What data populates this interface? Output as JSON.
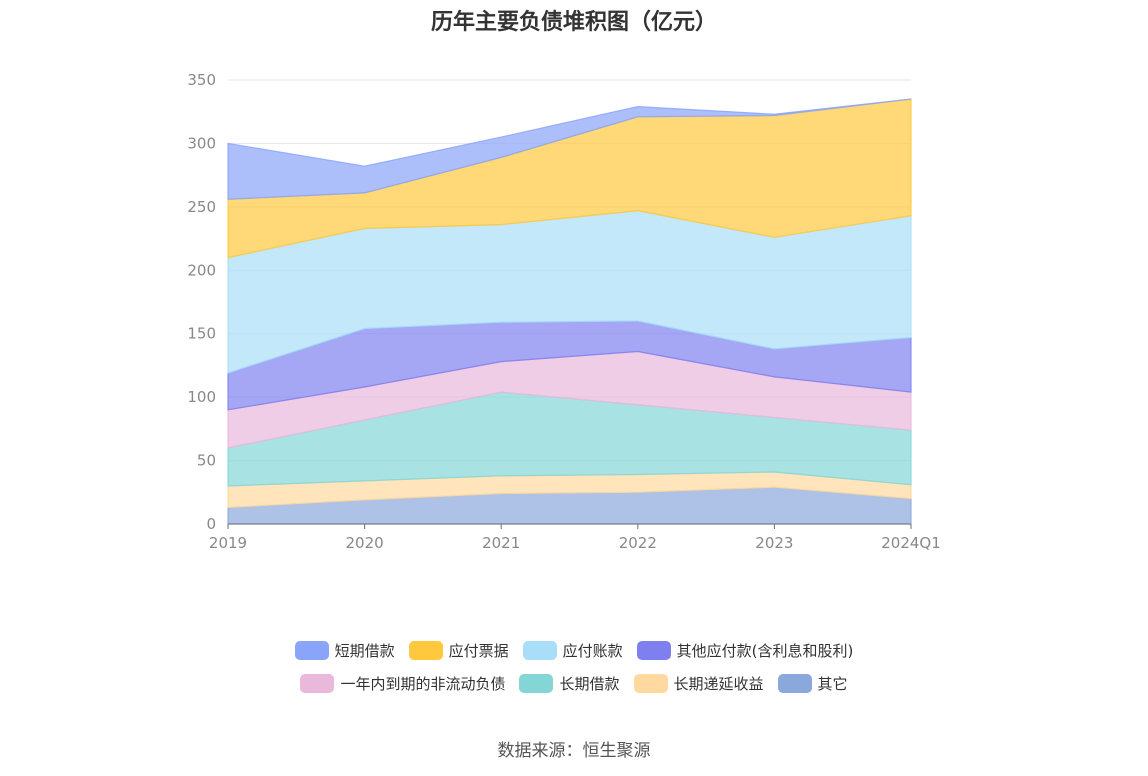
{
  "chart_data": {
    "type": "area",
    "stacked": true,
    "title": "历年主要负债堆积图（亿元）",
    "categories": [
      "2019",
      "2020",
      "2021",
      "2022",
      "2023",
      "2024Q1"
    ],
    "y_ticks": [
      "0",
      "50",
      "100",
      "150",
      "200",
      "250",
      "300",
      "350"
    ],
    "ylim": [
      0,
      350
    ],
    "grid": true,
    "legend_position": "bottom",
    "series": [
      {
        "name": "其它",
        "color": "#8aa8dc",
        "values": [
          13,
          19,
          24,
          25,
          29,
          20
        ]
      },
      {
        "name": "长期递延收益",
        "color": "#ffd9a0",
        "values": [
          17,
          15,
          14,
          14,
          12,
          11
        ]
      },
      {
        "name": "长期借款",
        "color": "#84d6d6",
        "values": [
          30,
          48,
          66,
          55,
          43,
          43
        ]
      },
      {
        "name": "一年内到期的非流动负债",
        "color": "#eab8db",
        "values": [
          30,
          26,
          24,
          42,
          32,
          30
        ]
      },
      {
        "name": "其他应付款(含利息和股利)",
        "color": "#7f80ef",
        "values": [
          29,
          46,
          31,
          24,
          22,
          43
        ]
      },
      {
        "name": "应付账款",
        "color": "#a8def8",
        "values": [
          91,
          79,
          77,
          87,
          88,
          96
        ]
      },
      {
        "name": "应付票据",
        "color": "#ffc83d",
        "values": [
          46,
          28,
          53,
          74,
          96,
          92
        ]
      },
      {
        "name": "短期借款",
        "color": "#8aa4fa",
        "values": [
          44,
          21,
          16,
          8,
          1,
          0
        ]
      }
    ]
  },
  "legend": {
    "row1": [
      {
        "label": "短期借款",
        "color": "#8aa4fa"
      },
      {
        "label": "应付票据",
        "color": "#ffc83d"
      },
      {
        "label": "应付账款",
        "color": "#a8def8"
      },
      {
        "label": "其他应付款(含利息和股利)",
        "color": "#7f80ef"
      }
    ],
    "row2": [
      {
        "label": "一年内到期的非流动负债",
        "color": "#eab8db"
      },
      {
        "label": "长期借款",
        "color": "#84d6d6"
      },
      {
        "label": "长期递延收益",
        "color": "#ffd9a0"
      },
      {
        "label": "其它",
        "color": "#8aa8dc"
      }
    ]
  },
  "source": "数据来源：恒生聚源"
}
